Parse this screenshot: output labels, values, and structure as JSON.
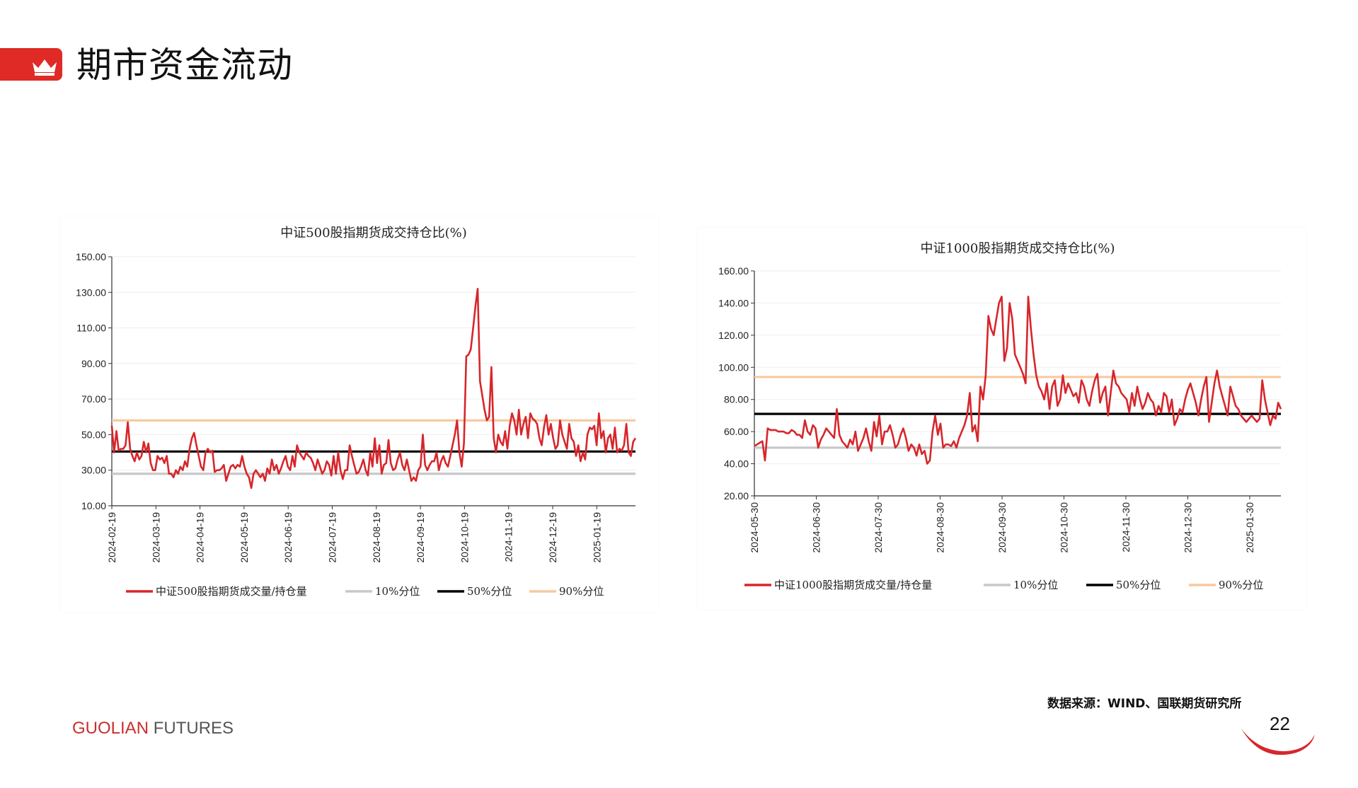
{
  "page": {
    "title": "期市资金流动",
    "source": "数据来源：WIND、国联期货研究所",
    "brand_main": "GUOLIAN",
    "brand_sub": "FUTURES",
    "page_number": "22",
    "accent_color": "#e02a26"
  },
  "chart_data": [
    {
      "type": "line",
      "title": "中证500股指期货成交持仓比(%)",
      "x_labels": [
        "2024-02-19",
        "2024-03-19",
        "2024-04-19",
        "2024-05-19",
        "2024-06-19",
        "2024-07-19",
        "2024-08-19",
        "2024-09-19",
        "2024-10-19",
        "2024-11-19",
        "2024-12-19",
        "2025-01-19"
      ],
      "ylim": [
        10,
        150
      ],
      "y_ticks": [
        "10.00",
        "30.00",
        "50.00",
        "70.00",
        "90.00",
        "110.00",
        "130.00",
        "150.00"
      ],
      "series": [
        {
          "name": "中证500股指期货成交量/持仓量",
          "color": "#d7262b",
          "values": [
            55,
            40,
            52,
            41,
            42,
            42,
            44,
            57,
            42,
            38,
            35,
            40,
            36,
            38,
            46,
            40,
            45,
            34,
            30,
            30,
            38,
            36,
            37,
            34,
            38,
            28,
            28,
            26,
            30,
            28,
            32,
            30,
            35,
            32,
            42,
            48,
            51,
            44,
            38,
            32,
            30,
            40,
            42,
            40,
            41,
            29,
            30,
            30,
            31,
            33,
            24,
            28,
            32,
            33,
            31,
            33,
            32,
            38,
            32,
            28,
            26,
            20,
            28,
            30,
            28,
            26,
            28,
            24,
            31,
            28,
            36,
            30,
            33,
            28,
            31,
            35,
            38,
            32,
            30,
            38,
            32,
            44,
            40,
            38,
            36,
            40,
            38,
            37,
            34,
            30,
            36,
            32,
            28,
            30,
            35,
            33,
            27,
            38,
            28,
            40,
            30,
            25,
            30,
            30,
            44,
            38,
            33,
            28,
            29,
            32,
            36,
            30,
            27,
            40,
            32,
            48,
            34,
            44,
            28,
            33,
            34,
            47,
            34,
            30,
            31,
            36,
            40,
            33,
            30,
            36,
            30,
            24,
            26,
            24,
            30,
            32,
            50,
            33,
            30,
            33,
            35,
            35,
            40,
            30,
            35,
            38,
            34,
            32,
            38,
            44,
            50,
            58,
            40,
            32,
            45,
            94,
            95,
            98,
            110,
            122,
            132,
            80,
            72,
            64,
            58,
            60,
            88,
            48,
            40,
            50,
            46,
            44,
            52,
            42,
            55,
            62,
            58,
            50,
            64,
            50,
            56,
            60,
            48,
            62,
            59,
            58,
            56,
            48,
            44,
            54,
            61,
            50,
            56,
            48,
            42,
            44,
            58,
            50,
            46,
            42,
            56,
            48,
            46,
            38,
            44,
            35,
            40,
            36,
            50,
            54,
            53,
            55,
            44,
            62,
            48,
            52,
            40,
            48,
            50,
            42,
            54,
            40,
            42,
            41,
            44,
            56,
            40,
            38,
            46,
            48
          ]
        },
        {
          "name": "10%分位",
          "color": "#c8c8c8",
          "value": 28
        },
        {
          "name": "50%分位",
          "color": "#000000",
          "value": 40.5
        },
        {
          "name": "90%分位",
          "color": "#f6c9a0",
          "value": 58
        }
      ]
    },
    {
      "type": "line",
      "title": "中证1000股指期货成交持仓比(%)",
      "x_labels": [
        "2024-05-30",
        "2024-06-30",
        "2024-07-30",
        "2024-08-30",
        "2024-09-30",
        "2024-10-30",
        "2024-11-30",
        "2024-12-30",
        "2025-01-30"
      ],
      "ylim": [
        20,
        160
      ],
      "y_ticks": [
        "20.00",
        "40.00",
        "60.00",
        "80.00",
        "100.00",
        "120.00",
        "140.00",
        "160.00"
      ],
      "series": [
        {
          "name": "中证1000股指期货成交量/持仓量",
          "color": "#d7262b",
          "values": [
            51,
            52,
            53,
            54,
            42,
            62,
            61,
            61,
            61,
            60,
            60,
            60,
            59,
            59,
            61,
            60,
            58,
            58,
            56,
            67,
            60,
            58,
            64,
            62,
            50,
            55,
            58,
            62,
            60,
            58,
            56,
            74,
            58,
            54,
            52,
            50,
            55,
            52,
            60,
            48,
            52,
            56,
            62,
            54,
            48,
            66,
            57,
            70,
            52,
            60,
            60,
            64,
            58,
            50,
            52,
            58,
            62,
            56,
            48,
            52,
            50,
            45,
            52,
            46,
            48,
            40,
            42,
            60,
            70,
            58,
            65,
            50,
            52,
            52,
            51,
            54,
            50,
            56,
            60,
            64,
            70,
            84,
            60,
            64,
            54,
            88,
            80,
            95,
            132,
            124,
            120,
            130,
            140,
            144,
            104,
            112,
            140,
            130,
            108,
            104,
            100,
            96,
            90,
            144,
            124,
            108,
            95,
            88,
            85,
            80,
            90,
            74,
            88,
            92,
            76,
            80,
            95,
            84,
            90,
            86,
            82,
            84,
            78,
            92,
            88,
            80,
            76,
            85,
            92,
            96,
            78,
            84,
            88,
            70,
            84,
            98,
            90,
            88,
            84,
            82,
            80,
            72,
            84,
            76,
            88,
            80,
            74,
            78,
            84,
            80,
            78,
            70,
            76,
            72,
            84,
            82,
            72,
            80,
            64,
            68,
            74,
            72,
            80,
            86,
            90,
            84,
            78,
            70,
            80,
            88,
            94,
            66,
            78,
            90,
            98,
            88,
            82,
            76,
            70,
            88,
            82,
            76,
            74,
            70,
            68,
            66,
            68,
            70,
            68,
            66,
            68,
            92,
            80,
            72,
            64,
            70,
            68,
            78,
            74
          ]
        },
        {
          "name": "10%分位",
          "color": "#c8c8c8",
          "value": 50
        },
        {
          "name": "50%分位",
          "color": "#000000",
          "value": 71
        },
        {
          "name": "90%分位",
          "color": "#f6c9a0",
          "value": 94
        }
      ]
    }
  ]
}
